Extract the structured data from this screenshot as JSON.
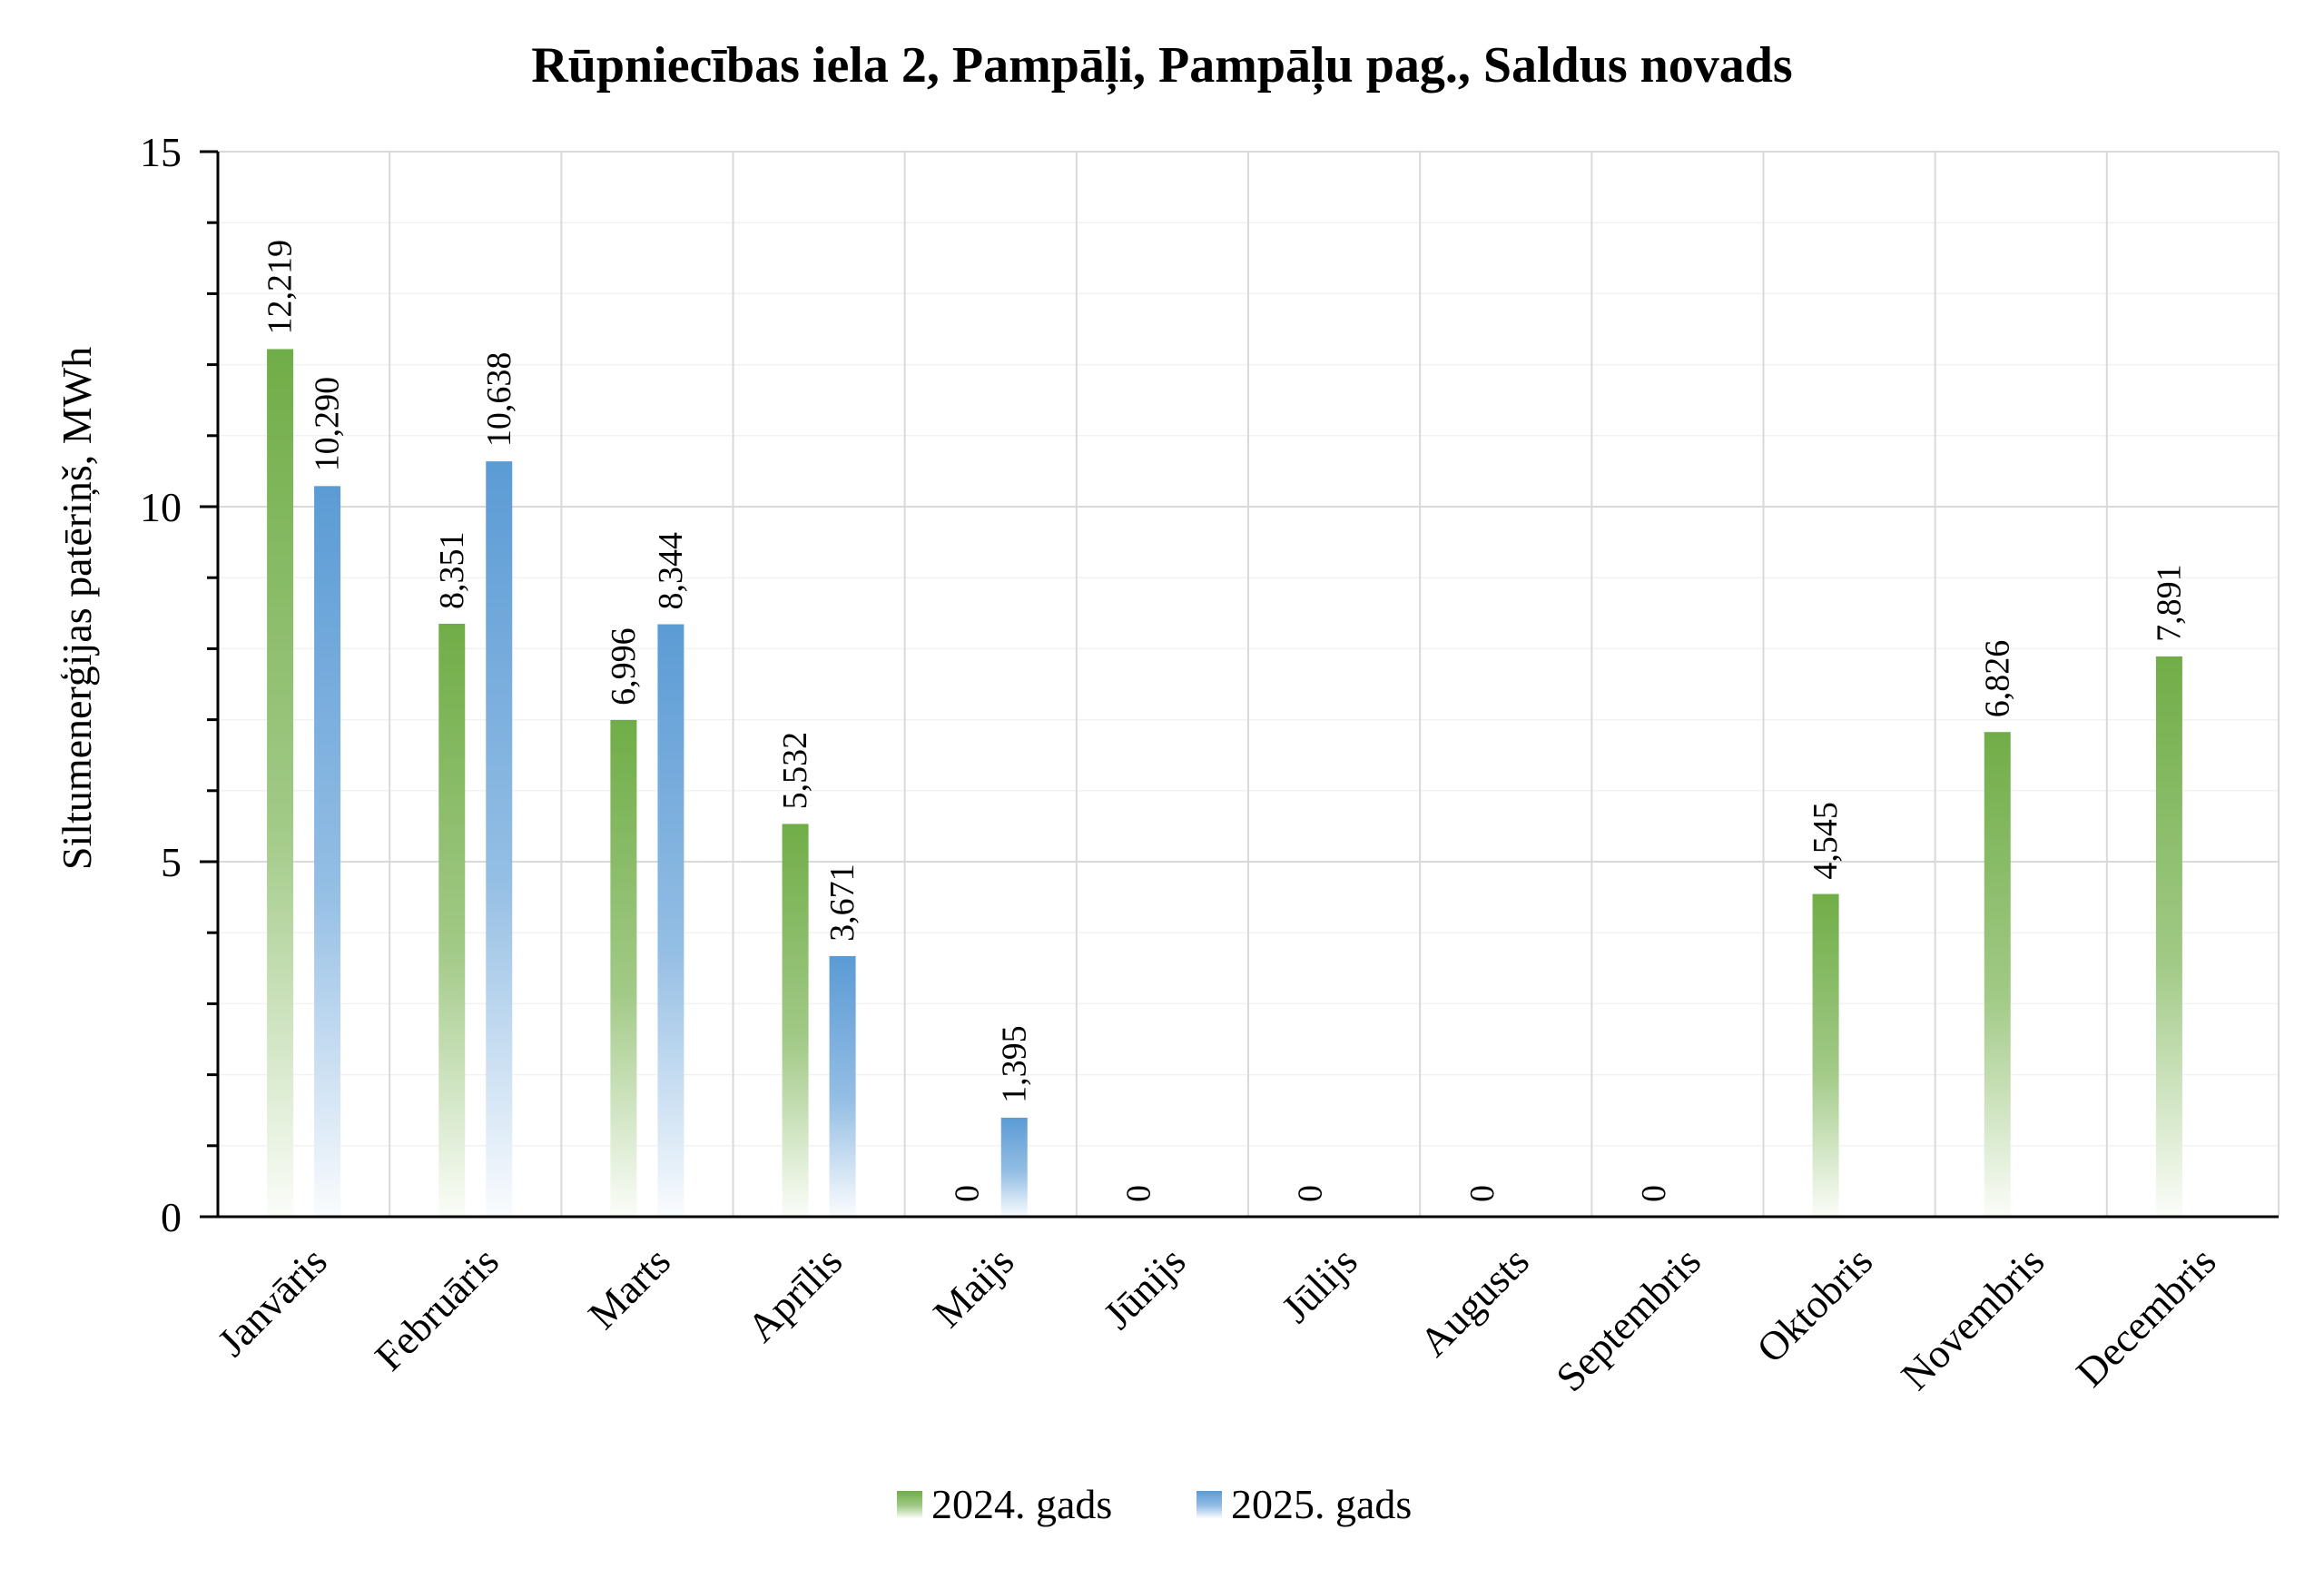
{
  "chart_data": {
    "type": "bar",
    "title": "Rūpniecības iela 2, Pampāļi, Pampāļu pag., Saldus novads",
    "xlabel": "",
    "ylabel": "Siltumenerģijas patēriņš, MWh",
    "ylim": [
      0,
      15
    ],
    "yticks": [
      0,
      5,
      10,
      15
    ],
    "grid": true,
    "legend_position": "bottom",
    "categories": [
      "Janvāris",
      "Februāris",
      "Marts",
      "Aprīlis",
      "Maijs",
      "Jūnijs",
      "Jūlijs",
      "Augusts",
      "Septembris",
      "Oktobris",
      "Novembris",
      "Decembris"
    ],
    "series": [
      {
        "name": "2024. gads",
        "color": "#70ad47",
        "values": [
          12.219,
          8.351,
          6.996,
          5.532,
          0,
          0,
          0,
          0,
          0,
          4.545,
          6.826,
          7.891
        ],
        "labels": [
          "12,219",
          "8,351",
          "6,996",
          "5,532",
          "0",
          "0",
          "0",
          "0",
          "0",
          "4,545",
          "6,826",
          "7,891"
        ]
      },
      {
        "name": "2025. gads",
        "color": "#5b9bd5",
        "values": [
          10.29,
          10.638,
          8.344,
          3.671,
          1.395,
          null,
          null,
          null,
          null,
          null,
          null,
          null
        ],
        "labels": [
          "10,290",
          "10,638",
          "8,344",
          "3,671",
          "1,395",
          "",
          "",
          "",
          "",
          "",
          "",
          ""
        ]
      }
    ]
  }
}
